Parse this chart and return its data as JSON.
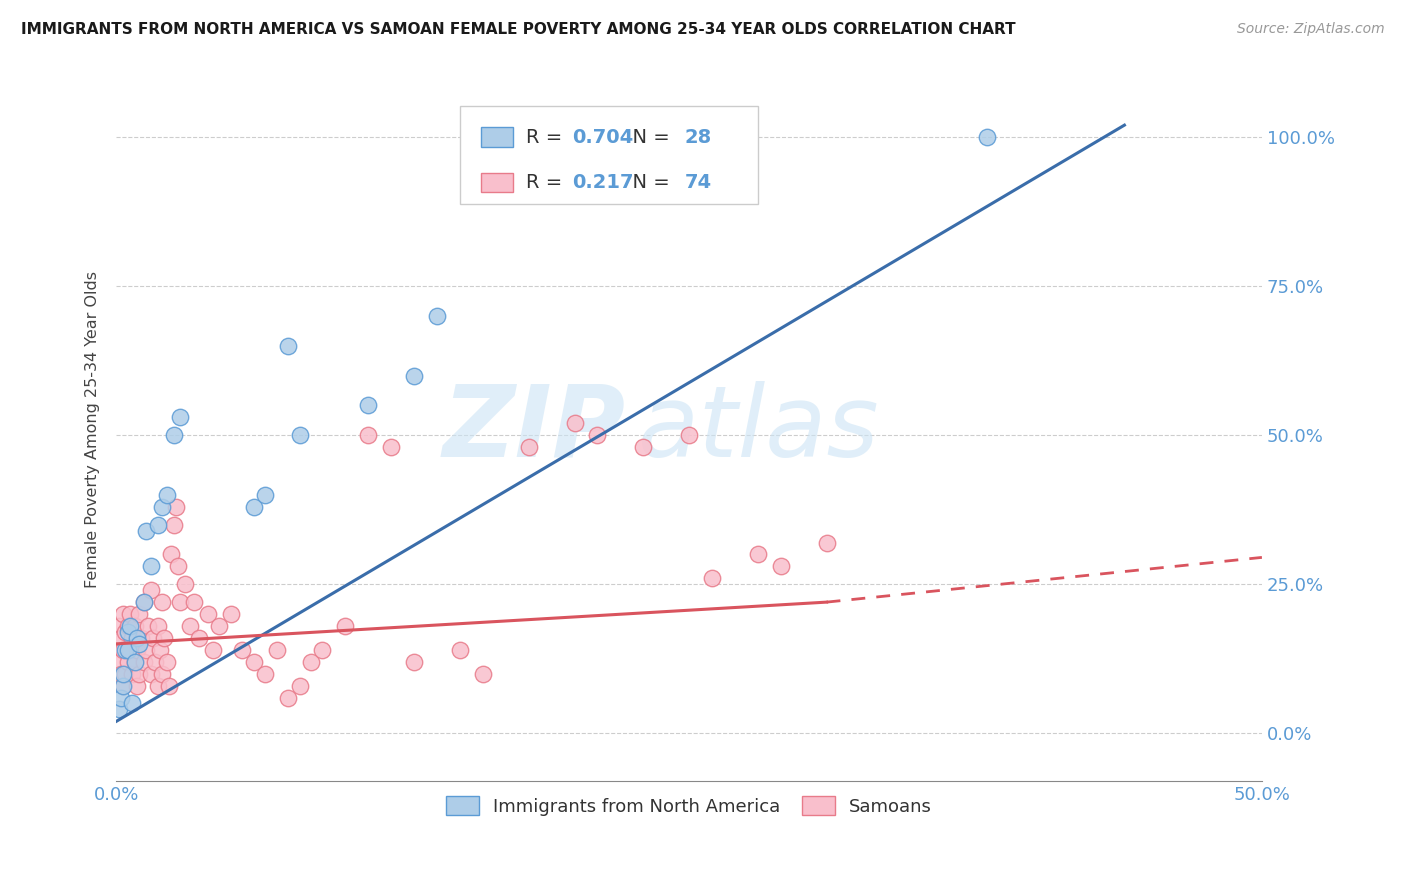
{
  "title": "IMMIGRANTS FROM NORTH AMERICA VS SAMOAN FEMALE POVERTY AMONG 25-34 YEAR OLDS CORRELATION CHART",
  "source": "Source: ZipAtlas.com",
  "ylabel": "Female Poverty Among 25-34 Year Olds",
  "xlim": [
    0.0,
    0.5
  ],
  "ylim": [
    -0.08,
    1.1
  ],
  "blue_R": "0.704",
  "blue_N": "28",
  "pink_R": "0.217",
  "pink_N": "74",
  "blue_color": "#aecde8",
  "pink_color": "#f9bfcc",
  "blue_edge_color": "#5b9bd5",
  "pink_edge_color": "#e87b8a",
  "blue_line_color": "#3a6daa",
  "pink_line_color": "#d9545e",
  "legend1_label": "Immigrants from North America",
  "legend2_label": "Samoans",
  "watermark_zip": "ZIP",
  "watermark_atlas": "atlas",
  "blue_scatter_x": [
    0.001,
    0.002,
    0.003,
    0.003,
    0.004,
    0.005,
    0.005,
    0.006,
    0.007,
    0.008,
    0.009,
    0.01,
    0.012,
    0.013,
    0.015,
    0.018,
    0.02,
    0.022,
    0.025,
    0.028,
    0.06,
    0.065,
    0.075,
    0.08,
    0.11,
    0.13,
    0.14,
    0.38
  ],
  "blue_scatter_y": [
    0.04,
    0.06,
    0.08,
    0.1,
    0.14,
    0.14,
    0.17,
    0.18,
    0.05,
    0.12,
    0.16,
    0.15,
    0.22,
    0.34,
    0.28,
    0.35,
    0.38,
    0.4,
    0.5,
    0.53,
    0.38,
    0.4,
    0.65,
    0.5,
    0.55,
    0.6,
    0.7,
    1.0
  ],
  "pink_scatter_x": [
    0.001,
    0.001,
    0.002,
    0.002,
    0.003,
    0.003,
    0.003,
    0.004,
    0.004,
    0.005,
    0.005,
    0.006,
    0.006,
    0.007,
    0.007,
    0.008,
    0.008,
    0.009,
    0.009,
    0.01,
    0.01,
    0.011,
    0.012,
    0.012,
    0.013,
    0.014,
    0.015,
    0.015,
    0.016,
    0.017,
    0.018,
    0.018,
    0.019,
    0.02,
    0.02,
    0.021,
    0.022,
    0.023,
    0.024,
    0.025,
    0.026,
    0.027,
    0.028,
    0.03,
    0.032,
    0.034,
    0.036,
    0.04,
    0.042,
    0.045,
    0.05,
    0.055,
    0.06,
    0.065,
    0.07,
    0.075,
    0.08,
    0.085,
    0.09,
    0.1,
    0.11,
    0.12,
    0.13,
    0.15,
    0.16,
    0.18,
    0.2,
    0.21,
    0.23,
    0.25,
    0.26,
    0.28,
    0.29,
    0.31
  ],
  "pink_scatter_y": [
    0.12,
    0.18,
    0.1,
    0.16,
    0.08,
    0.14,
    0.2,
    0.1,
    0.17,
    0.12,
    0.18,
    0.14,
    0.2,
    0.1,
    0.16,
    0.12,
    0.18,
    0.08,
    0.14,
    0.1,
    0.2,
    0.16,
    0.12,
    0.22,
    0.14,
    0.18,
    0.1,
    0.24,
    0.16,
    0.12,
    0.08,
    0.18,
    0.14,
    0.1,
    0.22,
    0.16,
    0.12,
    0.08,
    0.3,
    0.35,
    0.38,
    0.28,
    0.22,
    0.25,
    0.18,
    0.22,
    0.16,
    0.2,
    0.14,
    0.18,
    0.2,
    0.14,
    0.12,
    0.1,
    0.14,
    0.06,
    0.08,
    0.12,
    0.14,
    0.18,
    0.5,
    0.48,
    0.12,
    0.14,
    0.1,
    0.48,
    0.52,
    0.5,
    0.48,
    0.5,
    0.26,
    0.3,
    0.28,
    0.32
  ],
  "background_color": "#ffffff",
  "grid_color": "#c8c8c8",
  "tick_color": "#5b9bd5",
  "axis_color": "#888888"
}
